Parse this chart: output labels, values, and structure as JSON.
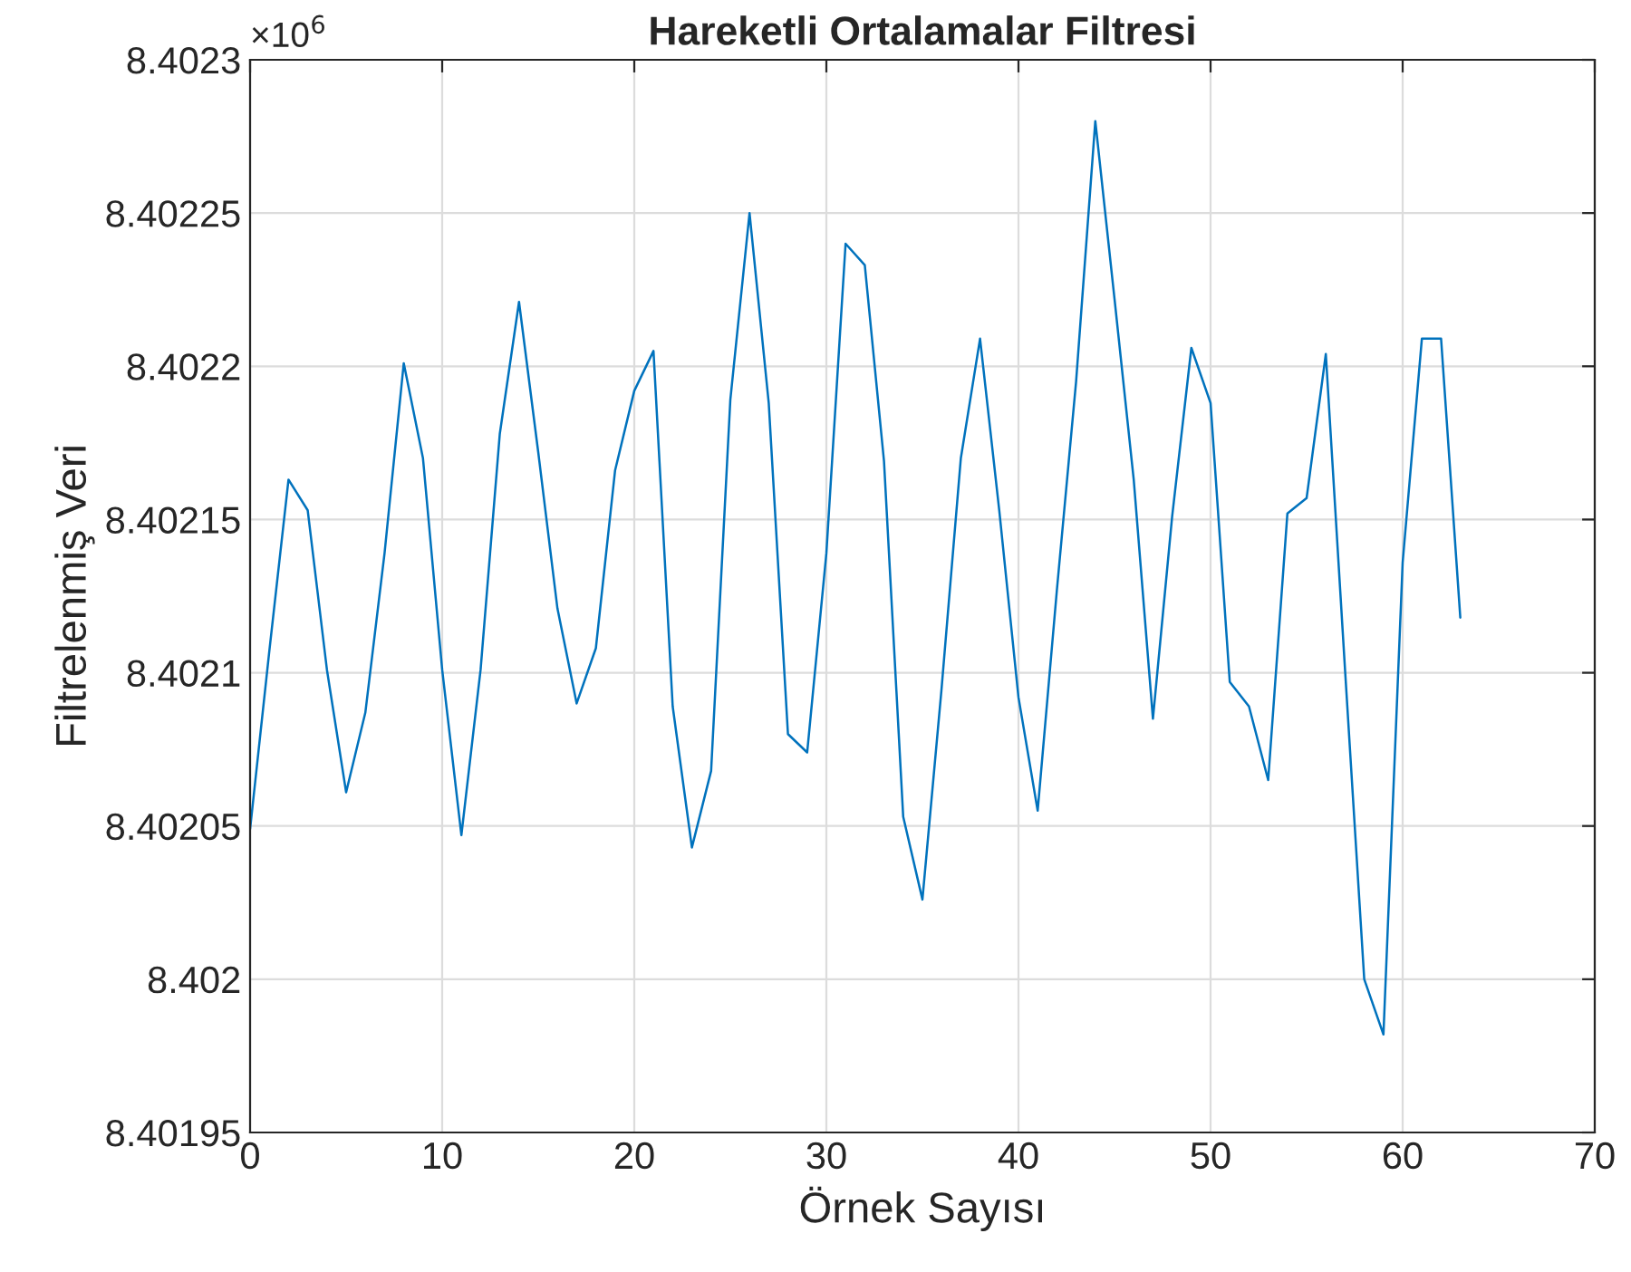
{
  "chart_data": {
    "type": "line",
    "title": "Hareketli Ortalamalar Filtresi",
    "xlabel": "Örnek Sayısı",
    "ylabel": "Filtrelenmiş Veri",
    "annotations": [
      "×10$^{6}$"
    ],
    "x": [
      0,
      1,
      2,
      3,
      4,
      5,
      6,
      7,
      8,
      9,
      10,
      11,
      12,
      13,
      14,
      15,
      16,
      17,
      18,
      19,
      20,
      21,
      22,
      23,
      24,
      25,
      26,
      27,
      28,
      29,
      30,
      31,
      32,
      33,
      34,
      35,
      36,
      37,
      38,
      39,
      40,
      41,
      42,
      43,
      44,
      45,
      46,
      47,
      48,
      49,
      50,
      51,
      52,
      53,
      54,
      55,
      56,
      57,
      58,
      59,
      60,
      61,
      62,
      63
    ],
    "series": [
      {
        "color": "#0072bd",
        "values": [
          8.402049,
          8.402107,
          8.402163,
          8.402153,
          8.402101,
          8.402061,
          8.402087,
          8.402139,
          8.402201,
          8.40217,
          8.402101,
          8.402047,
          8.402101,
          8.402178,
          8.402221,
          8.402172,
          8.402121,
          8.40209,
          8.402108,
          8.402166,
          8.402192,
          8.402205,
          8.402089,
          8.402043,
          8.402068,
          8.402189,
          8.40225,
          8.402188,
          8.40208,
          8.402074,
          8.402139,
          8.40224,
          8.402233,
          8.402169,
          8.402053,
          8.402026,
          8.402095,
          8.40217,
          8.402209,
          8.402153,
          8.402092,
          8.402055,
          8.402127,
          8.402195,
          8.40228,
          8.402222,
          8.402163,
          8.402085,
          8.402151,
          8.402206,
          8.402188,
          8.402097,
          8.402089,
          8.402065,
          8.402152,
          8.402157,
          8.402204,
          8.402101,
          8.402,
          8.401982,
          8.402136,
          8.402209,
          8.402209,
          8.402118
        ]
      }
    ],
    "xlim": [
      0,
      70
    ],
    "xticks": [
      0,
      10,
      20,
      30,
      40,
      50,
      60,
      70
    ],
    "ylim": [
      8.40195,
      8.4023
    ],
    "yticks": [
      8.40195,
      8.402,
      8.40205,
      8.4021,
      8.40215,
      8.4022,
      8.40225,
      8.4023
    ],
    "grid": true,
    "marker": "none",
    "line_style": "solid"
  }
}
